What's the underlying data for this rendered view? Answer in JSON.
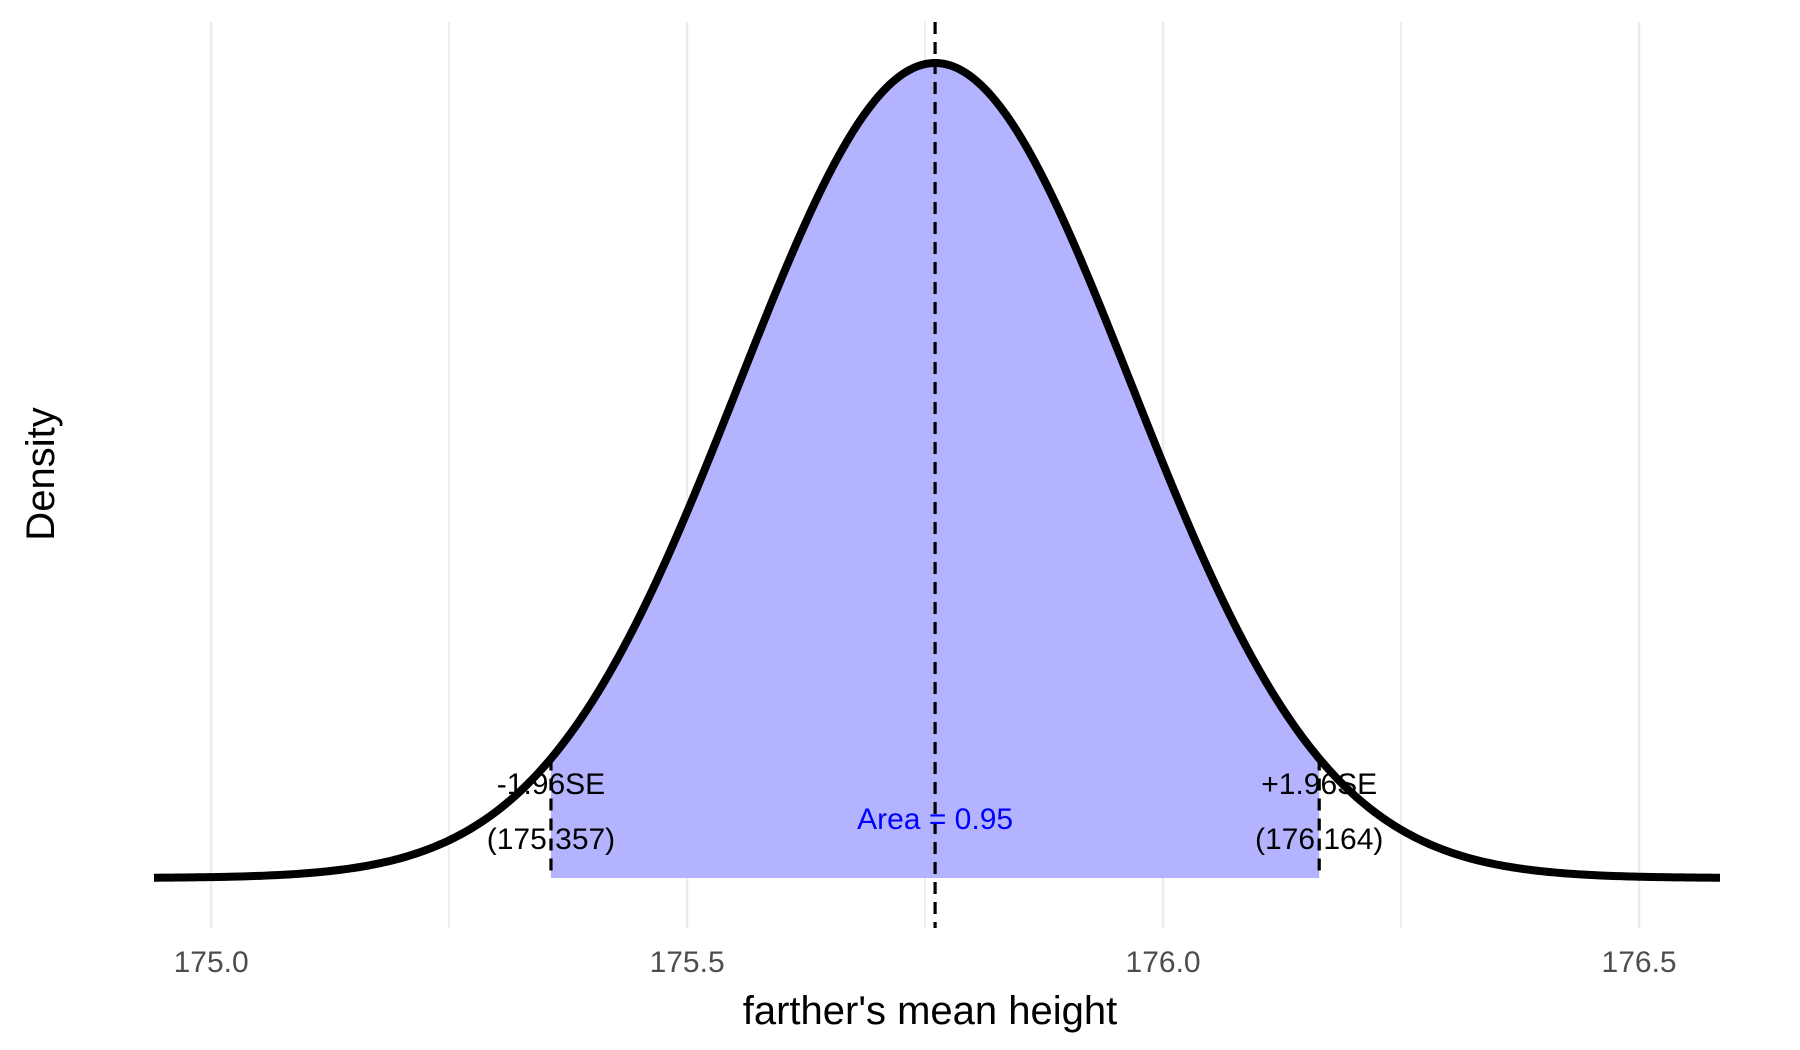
{
  "chart_data": {
    "type": "area",
    "xlabel": "farther's mean height",
    "ylabel": "Density",
    "xlim": [
      174.94,
      176.585
    ],
    "ylim": [
      0,
      1
    ],
    "grid": {
      "vertical_major": true,
      "vertical_minor": true,
      "horizontal": false
    },
    "x_ticks": [
      175.0,
      175.5,
      176.0,
      176.5
    ],
    "x_tick_labels": [
      "175.0",
      "175.5",
      "176.0",
      "176.5"
    ],
    "x_minor_ticks": [
      175.25,
      175.75,
      176.25
    ],
    "distribution": {
      "kind": "normal",
      "mean": 175.7605,
      "se": 0.2059
    },
    "interval": {
      "lower": 175.357,
      "upper": 176.164,
      "lower_label": "-1.96SE",
      "upper_label": "+1.96SE",
      "lower_value_label": "(175.357)",
      "upper_value_label": "(176.164)",
      "area_label": "Area = 0.95"
    },
    "colors": {
      "fill": "#b3b3ff",
      "curve": "#000000",
      "area_label": "#0000ff",
      "grid": "#ebebeb",
      "tick_label": "#4d4d4d"
    }
  }
}
